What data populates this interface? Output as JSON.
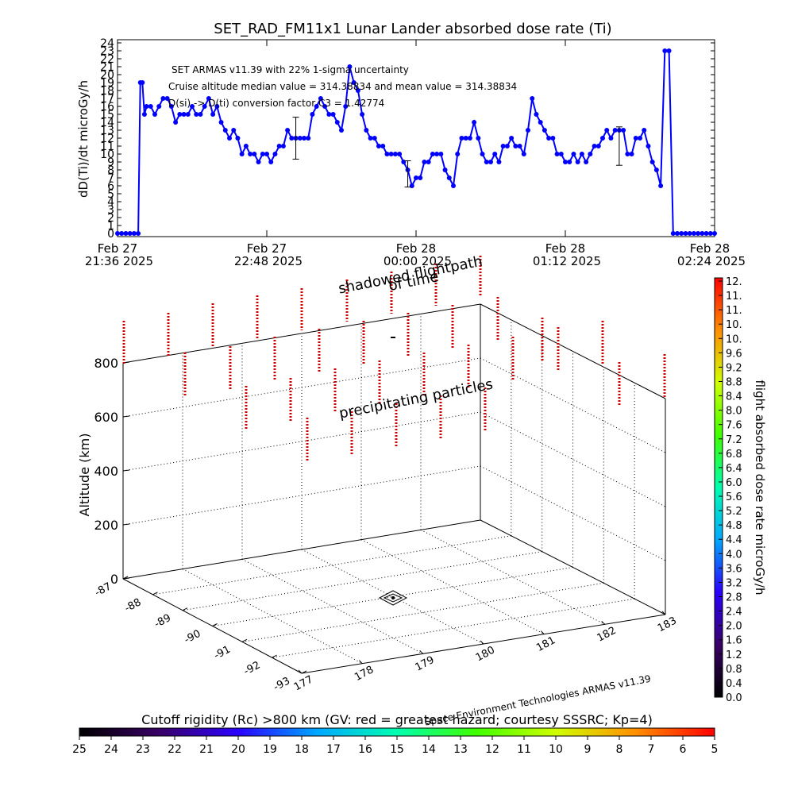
{
  "chart_data": [
    {
      "type": "line",
      "title": "SET_RAD_FM11x1  Lunar Lander absorbed dose rate (Ti)",
      "ylabel": "dD(Ti)/dt microGy/h",
      "ylim": [
        0,
        24
      ],
      "y_ticks": [
        0,
        1,
        2,
        3,
        4,
        5,
        6,
        7,
        8,
        9,
        10,
        11,
        12,
        13,
        14,
        15,
        16,
        17,
        18,
        19,
        20,
        21,
        22,
        23,
        24
      ],
      "xlim_minutes": [
        0,
        288
      ],
      "x_tick_positions": [
        0,
        72,
        144,
        216,
        288
      ],
      "x_ticks": [
        {
          "line1": "Feb 27",
          "line2": "21:36 2025"
        },
        {
          "line1": "Feb 27",
          "line2": "22:48 2025"
        },
        {
          "line1": "Feb 28",
          "line2": "00:00 2025"
        },
        {
          "line1": "Feb 28",
          "line2": "01:12 2025"
        },
        {
          "line1": "Feb 28",
          "line2": "02:24 2025"
        }
      ],
      "annotations": [
        "SET ARMAS v11.39 with 22% 1-sigma uncertainty",
        "Cruise altitude median value = 314.38834 and mean value = 314.38834",
        "D(si) -> D(ti) conversion factor C3 = 1.42774"
      ],
      "series_color": "#0000ff",
      "series": [
        {
          "x": [
            0,
            2,
            4,
            6,
            8,
            10,
            11,
            12,
            13,
            14,
            16,
            18,
            20,
            22,
            24,
            26,
            28,
            30,
            32,
            34,
            36,
            38,
            40,
            42,
            44,
            46,
            48,
            50,
            52,
            54,
            56,
            58,
            60,
            62,
            64,
            66,
            68,
            70,
            72,
            74,
            76,
            78,
            80,
            82,
            84,
            86,
            88,
            90,
            92,
            94,
            96,
            98,
            100,
            102,
            104,
            106,
            108,
            110,
            112,
            114,
            116,
            118,
            120,
            122,
            124,
            126,
            128,
            130,
            132,
            134,
            136,
            138,
            140,
            142,
            144,
            146,
            148,
            150,
            152,
            154,
            156,
            158,
            160,
            162,
            164,
            166,
            168,
            170,
            172,
            174,
            176,
            178,
            180,
            182,
            184,
            186,
            188,
            190,
            192,
            194,
            196,
            198,
            200,
            202,
            204,
            206,
            208,
            210,
            212,
            214,
            216,
            218,
            220,
            222,
            224,
            226,
            228,
            230,
            232,
            234,
            236,
            238,
            240,
            242,
            244,
            246,
            248,
            250,
            252,
            254,
            256,
            258,
            260,
            262,
            264,
            266,
            268,
            270,
            272,
            274,
            276,
            278,
            280,
            282,
            284,
            286,
            288
          ],
          "y": [
            0,
            0,
            0,
            0,
            0,
            0,
            19,
            19,
            15,
            16,
            16,
            15,
            16,
            17,
            17,
            16,
            14,
            15,
            15,
            15,
            16,
            15,
            15,
            16,
            17,
            15,
            16,
            14,
            13,
            12,
            13,
            12,
            10,
            11,
            10,
            10,
            9,
            10,
            10,
            9,
            10,
            11,
            11,
            13,
            12,
            12,
            12,
            12,
            12,
            15,
            16,
            17,
            16,
            15,
            15,
            14,
            13,
            16,
            21,
            19,
            18,
            15,
            13,
            12,
            12,
            11,
            11,
            10,
            10,
            10,
            10,
            9,
            8,
            6,
            7,
            7,
            9,
            9,
            10,
            10,
            10,
            8,
            7,
            6,
            10,
            12,
            12,
            12,
            14,
            12,
            10,
            9,
            9,
            10,
            9,
            11,
            11,
            12,
            11,
            11,
            10,
            13,
            17,
            15,
            14,
            13,
            12,
            12,
            10,
            10,
            9,
            9,
            10,
            9,
            10,
            9,
            10,
            11,
            11,
            12,
            13,
            12,
            13,
            13,
            13,
            10,
            10,
            12,
            12,
            13,
            11,
            9,
            8,
            6,
            23,
            23,
            0,
            0,
            0,
            0,
            0,
            0,
            0,
            0,
            0,
            0,
            0
          ]
        }
      ]
    },
    {
      "type": "scatter",
      "title": "shadowed flightpath",
      "subtitle": "of time",
      "annotation": "precipitating particles",
      "zlabel": "Altitude (km)",
      "zlim": [
        0,
        800
      ],
      "z_ticks": [
        0,
        200,
        400,
        600,
        800
      ],
      "latitude_ticks": [
        "-87",
        "-88",
        "-89",
        "-90",
        "-91",
        "-92",
        "-93"
      ],
      "longitude_ticks": [
        "177",
        "178",
        "179",
        "180",
        "181",
        "182",
        "183"
      ],
      "credit": "Space Environment Technologies ARMAS v11.39",
      "precip_color": "#cc0000",
      "flightpath_marker_color": "#000000"
    },
    {
      "type": "heatmap",
      "colorbar_label": "flight absorbed dose rate microGy/h",
      "colorbar_ticks": [
        "0.0",
        "0.4",
        "0.8",
        "1.2",
        "1.6",
        "2.0",
        "2.4",
        "2.8",
        "3.2",
        "3.6",
        "4.0",
        "4.4",
        "4.8",
        "5.2",
        "5.6",
        "6.0",
        "6.4",
        "6.8",
        "7.2",
        "7.6",
        "8.0",
        "8.4",
        "8.8",
        "9.2",
        "9.6",
        "10.",
        "10.",
        "11.",
        "11.",
        "12."
      ],
      "colormap": [
        "#000000",
        "#3a0066",
        "#2a00ff",
        "#00a8ff",
        "#00ffb0",
        "#40ff00",
        "#d0ff00",
        "#ff9000",
        "#ff0000"
      ]
    },
    {
      "type": "heatmap",
      "colorbar_label": "Cutoff rigidity (Rc) >800 km (GV: red = greatest hazard; courtesy SSSRC; Kp=4)",
      "colorbar_ticks": [
        "25",
        "24",
        "23",
        "22",
        "21",
        "20",
        "19",
        "18",
        "17",
        "16",
        "15",
        "14",
        "13",
        "12",
        "11",
        "10",
        "9",
        "8",
        "7",
        "6",
        "5"
      ],
      "colormap": [
        "#000000",
        "#3a0066",
        "#2a00ff",
        "#00a8ff",
        "#00ffb0",
        "#40ff00",
        "#d0ff00",
        "#ff9000",
        "#ff0000"
      ]
    }
  ]
}
